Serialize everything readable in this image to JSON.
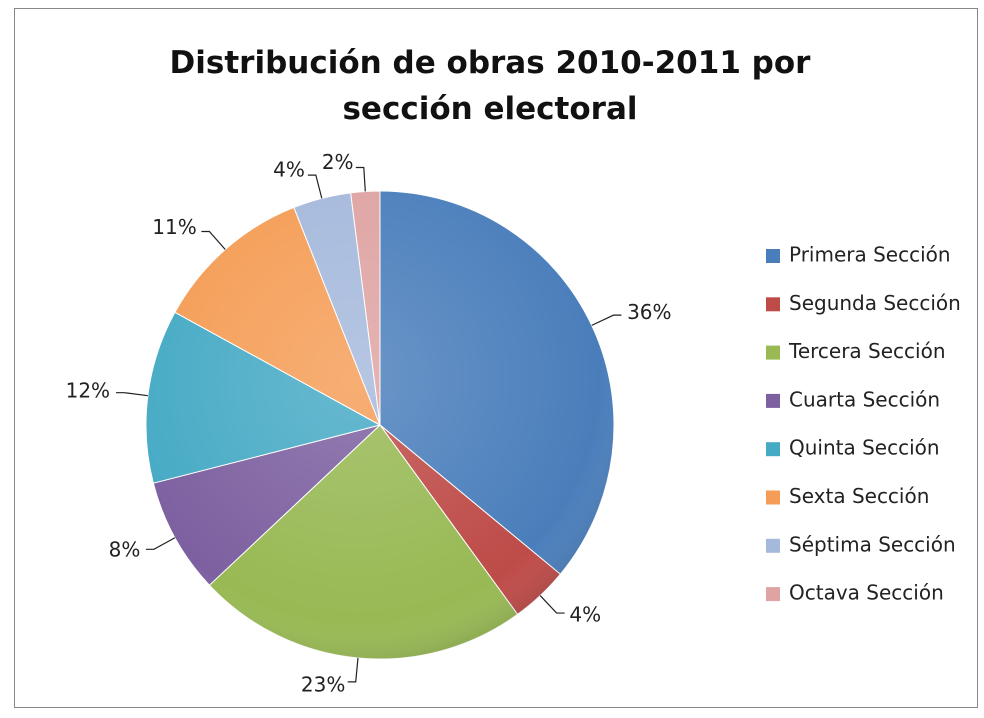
{
  "chart_data": {
    "type": "pie",
    "title": "Distribución de obras 2010-2011 por sección electoral",
    "categories": [
      "Primera Sección",
      "Segunda Sección",
      "Tercera Sección",
      "Cuarta Sección",
      "Quinta Sección",
      "Sexta Sección",
      "Séptima Sección",
      "Octava Sección"
    ],
    "values": [
      36,
      4,
      23,
      8,
      12,
      11,
      4,
      2
    ],
    "value_labels": [
      "36%",
      "4%",
      "23%",
      "8%",
      "12%",
      "11%",
      "4%",
      "2%"
    ],
    "colors": [
      "#4a7ebb",
      "#be4b48",
      "#98b954",
      "#7d60a0",
      "#46aac5",
      "#f59d56",
      "#a5b9dc",
      "#dea3a2"
    ],
    "legend": "right"
  }
}
